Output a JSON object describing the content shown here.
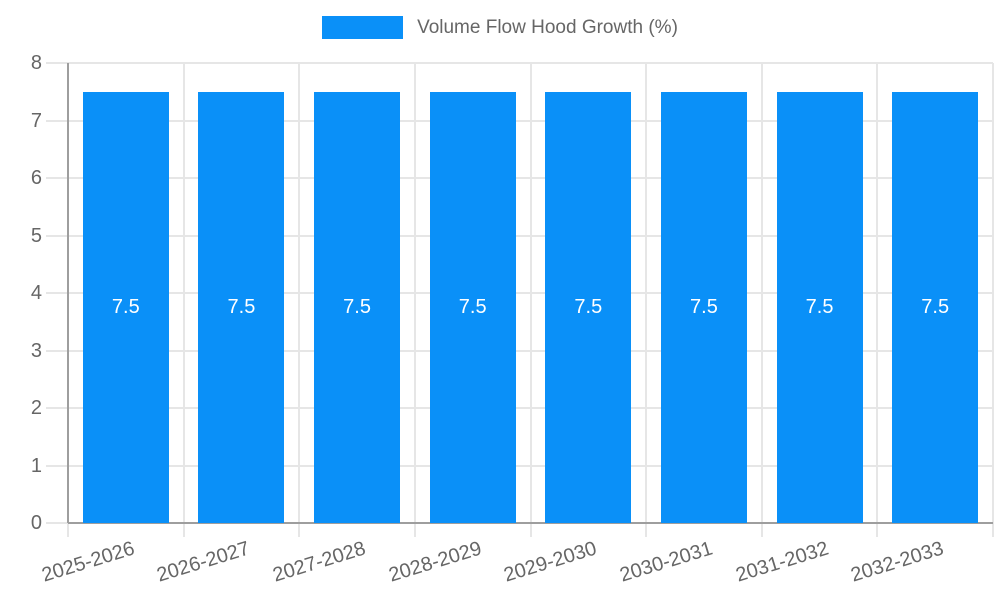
{
  "legend": {
    "label": "Volume Flow Hood Growth (%)"
  },
  "chart_data": {
    "type": "bar",
    "title": "Volume Flow Hood Growth (%)",
    "categories": [
      "2025-2026",
      "2026-2027",
      "2027-2028",
      "2028-2029",
      "2029-2030",
      "2030-2031",
      "2031-2032",
      "2032-2033"
    ],
    "values": [
      7.5,
      7.5,
      7.5,
      7.5,
      7.5,
      7.5,
      7.5,
      7.5
    ],
    "bar_labels": [
      "7.5",
      "7.5",
      "7.5",
      "7.5",
      "7.5",
      "7.5",
      "7.5",
      "7.5"
    ],
    "xlabel": "",
    "ylabel": "",
    "ylim": [
      0,
      8
    ],
    "y_ticks": [
      0,
      1,
      2,
      3,
      4,
      5,
      6,
      7,
      8
    ],
    "grid": true,
    "legend_position": "top",
    "x_label_rotation_deg": -17,
    "bar_color": "#0a90f8",
    "value_label_color": "#ffffff",
    "axis_color": "#9e9e9e",
    "grid_color": "#e6e6e6",
    "tick_label_color": "#666666"
  }
}
